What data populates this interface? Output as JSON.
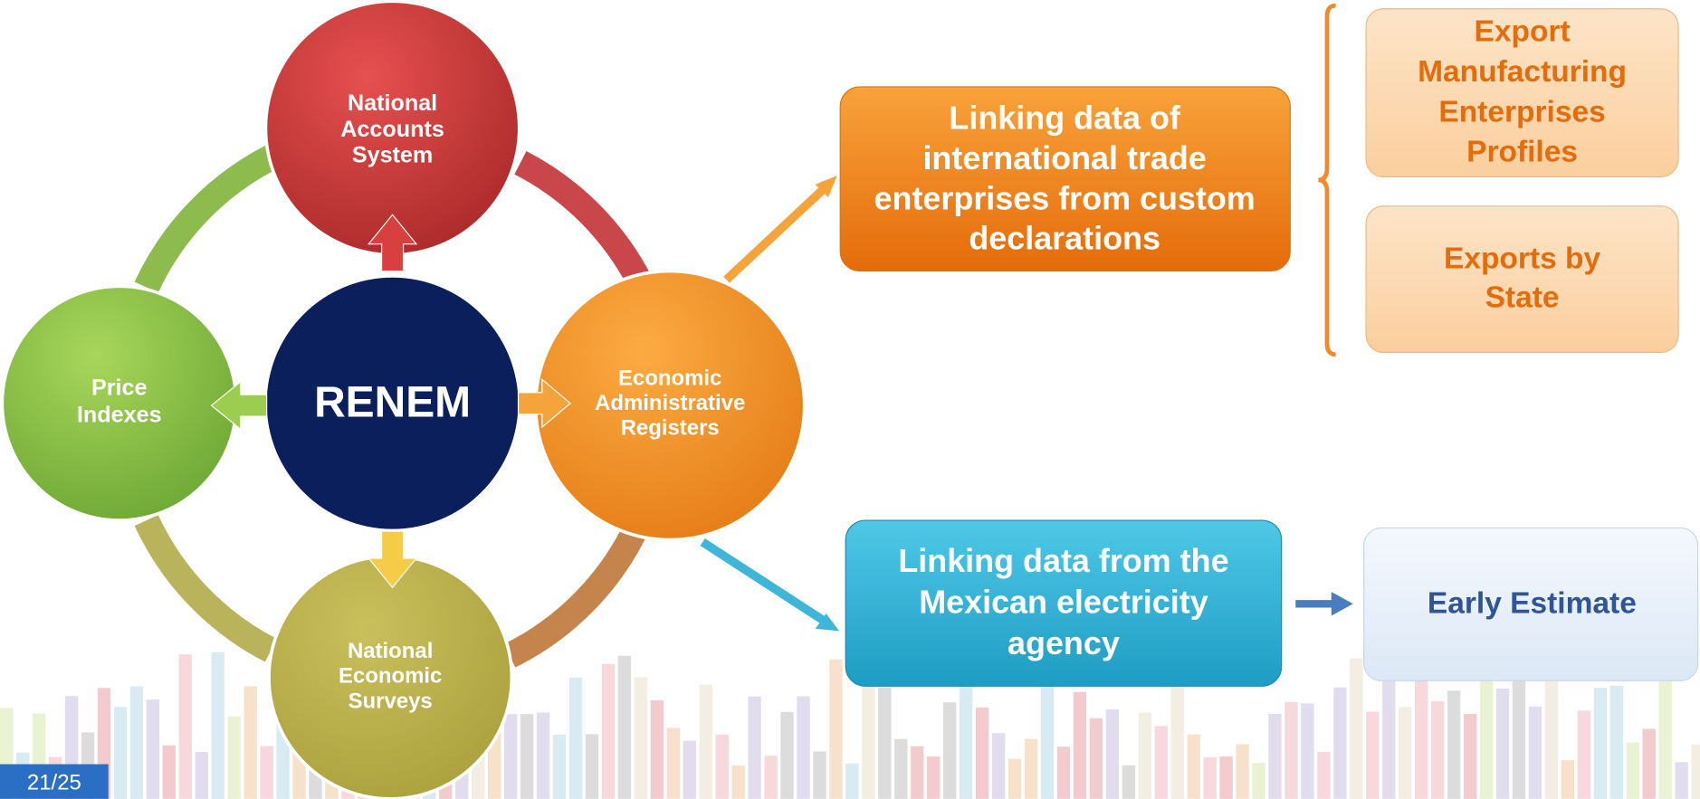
{
  "center": "RENEM",
  "nodes": [
    {
      "label": [
        "National",
        "Accounts",
        "System"
      ]
    },
    {
      "label": [
        "Price",
        "Indexes"
      ]
    },
    {
      "label": [
        "Economic",
        "Administrative",
        "Registers"
      ]
    },
    {
      "label": [
        "National",
        "Economic",
        "Surveys"
      ]
    }
  ],
  "links": [
    {
      "label": [
        "Linking data of",
        "international trade",
        "enterprises from custom",
        "declarations"
      ]
    },
    {
      "label": [
        "Linking data from the",
        "Mexican electricity",
        "agency"
      ]
    }
  ],
  "outputs": [
    {
      "label": [
        "Export",
        "Manufacturing",
        "Enterprises",
        "Profiles"
      ]
    },
    {
      "label": [
        "Exports by",
        "State"
      ]
    },
    {
      "label": [
        "Early Estimate"
      ]
    }
  ],
  "page_number": "21/25"
}
